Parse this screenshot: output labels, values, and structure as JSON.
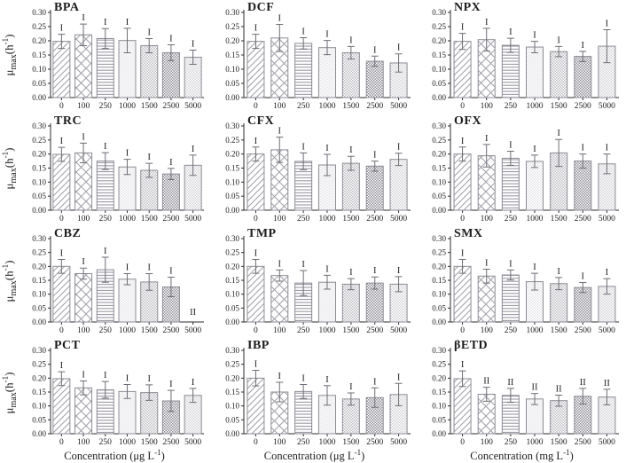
{
  "figure": {
    "y_ticks": [
      "0.00",
      "0.05",
      "0.10",
      "0.15",
      "0.20",
      "0.25",
      "0.30"
    ],
    "ylim": [
      0,
      0.3
    ],
    "categories": [
      "0",
      "100",
      "250",
      "1000",
      "1500",
      "2500",
      "5000"
    ],
    "ylabel": {
      "mu": "μ",
      "sub": "max",
      "mid": "(h",
      "sup": "-1",
      "post": ")"
    },
    "xlabels": {
      "col1": {
        "pre": "Concentration (μg L",
        "sup": "-1",
        "post": ")"
      },
      "col2": {
        "pre": "Concentration (μg L",
        "sup": "-1",
        "post": ")"
      },
      "col3": {
        "pre": "Concentration (mg L",
        "sup": "-1",
        "post": ")"
      }
    },
    "pattern_order": [
      "diagonal",
      "crosshatch",
      "horizontal",
      "checker-faint",
      "checker-medium",
      "checker-dark",
      "checker-light"
    ],
    "colors": {
      "axis": "#2b2b2b",
      "bar_stroke": "#8c8c94",
      "hatch_stroke": "#a0a0a8",
      "error_bar": "#6e6e76",
      "text": "#1d1d1d",
      "background": "#ffffff"
    }
  },
  "chart_data": [
    {
      "type": "bar",
      "id": "bpa",
      "title": "BPA",
      "row": 1,
      "col": 1,
      "has_ylabel": true,
      "xlabel_key": "",
      "values": [
        0.198,
        0.221,
        0.208,
        0.201,
        0.183,
        0.158,
        0.142
      ],
      "errors": [
        0.025,
        0.038,
        0.035,
        0.043,
        0.025,
        0.028,
        0.025
      ],
      "sig": [
        "I",
        "I",
        "I",
        "I",
        "I",
        "I",
        "I"
      ]
    },
    {
      "type": "bar",
      "id": "dcf",
      "title": "DCF",
      "row": 1,
      "col": 2,
      "has_ylabel": false,
      "xlabel_key": "",
      "values": [
        0.198,
        0.21,
        0.191,
        0.176,
        0.158,
        0.128,
        0.122
      ],
      "errors": [
        0.025,
        0.048,
        0.02,
        0.025,
        0.022,
        0.018,
        0.032
      ],
      "sig": [
        "I",
        "I",
        "I",
        "I",
        "I",
        "I",
        "I"
      ]
    },
    {
      "type": "bar",
      "id": "npx",
      "title": "NPX",
      "row": 1,
      "col": 3,
      "has_ylabel": false,
      "xlabel_key": "",
      "values": [
        0.198,
        0.204,
        0.184,
        0.178,
        0.162,
        0.145,
        0.181
      ],
      "errors": [
        0.028,
        0.04,
        0.025,
        0.02,
        0.018,
        0.018,
        0.058
      ],
      "sig": [
        "I",
        "I",
        "I",
        "I",
        "I",
        "I",
        "I"
      ]
    },
    {
      "type": "bar",
      "id": "trc",
      "title": "TRC",
      "row": 2,
      "col": 1,
      "has_ylabel": true,
      "xlabel_key": "",
      "values": [
        0.199,
        0.204,
        0.175,
        0.154,
        0.142,
        0.129,
        0.16
      ],
      "errors": [
        0.025,
        0.035,
        0.03,
        0.027,
        0.025,
        0.02,
        0.036
      ],
      "sig": [
        "I",
        "I",
        "I",
        "I",
        "I",
        "I",
        "I"
      ]
    },
    {
      "type": "bar",
      "id": "cfx",
      "title": "CFX",
      "row": 2,
      "col": 2,
      "has_ylabel": false,
      "xlabel_key": "",
      "values": [
        0.2,
        0.215,
        0.174,
        0.161,
        0.167,
        0.157,
        0.181
      ],
      "errors": [
        0.025,
        0.045,
        0.03,
        0.038,
        0.025,
        0.018,
        0.022
      ],
      "sig": [
        "I",
        "I",
        "I",
        "I",
        "I",
        "I",
        "I"
      ]
    },
    {
      "type": "bar",
      "id": "ofx",
      "title": "OFX",
      "row": 2,
      "col": 3,
      "has_ylabel": false,
      "xlabel_key": "",
      "values": [
        0.2,
        0.194,
        0.185,
        0.174,
        0.204,
        0.175,
        0.165
      ],
      "errors": [
        0.025,
        0.04,
        0.025,
        0.022,
        0.048,
        0.025,
        0.035
      ],
      "sig": [
        "I",
        "I",
        "I",
        "I",
        "I",
        "I",
        "I"
      ]
    },
    {
      "type": "bar",
      "id": "cbz",
      "title": "CBZ",
      "row": 3,
      "col": 1,
      "has_ylabel": true,
      "xlabel_key": "",
      "values": [
        0.2,
        0.174,
        0.188,
        0.154,
        0.144,
        0.126,
        0
      ],
      "errors": [
        0.025,
        0.02,
        0.045,
        0.02,
        0.03,
        0.035,
        0
      ],
      "sig": [
        "I",
        "I",
        "I",
        "I",
        "I",
        "I",
        "II"
      ]
    },
    {
      "type": "bar",
      "id": "tmp",
      "title": "TMP",
      "row": 3,
      "col": 2,
      "has_ylabel": false,
      "xlabel_key": "",
      "values": [
        0.2,
        0.167,
        0.14,
        0.143,
        0.136,
        0.14,
        0.136
      ],
      "errors": [
        0.025,
        0.02,
        0.045,
        0.025,
        0.02,
        0.022,
        0.027
      ],
      "sig": [
        "I",
        "I",
        "I",
        "I",
        "I",
        "I",
        "I"
      ]
    },
    {
      "type": "bar",
      "id": "smx",
      "title": "SMX",
      "row": 3,
      "col": 3,
      "has_ylabel": false,
      "xlabel_key": "",
      "values": [
        0.2,
        0.165,
        0.169,
        0.145,
        0.138,
        0.124,
        0.128
      ],
      "errors": [
        0.025,
        0.025,
        0.018,
        0.03,
        0.022,
        0.018,
        0.028
      ],
      "sig": [
        "I",
        "I",
        "I",
        "I",
        "I",
        "I",
        "I"
      ]
    },
    {
      "type": "bar",
      "id": "pct",
      "title": "PCT",
      "row": 4,
      "col": 1,
      "has_ylabel": true,
      "xlabel_key": "col1",
      "values": [
        0.198,
        0.165,
        0.158,
        0.152,
        0.148,
        0.118,
        0.138
      ],
      "errors": [
        0.025,
        0.025,
        0.03,
        0.025,
        0.028,
        0.038,
        0.025
      ],
      "sig": [
        "I",
        "I",
        "I",
        "I",
        "I",
        "I",
        "I"
      ]
    },
    {
      "type": "bar",
      "id": "ibp",
      "title": "IBP",
      "row": 4,
      "col": 2,
      "has_ylabel": false,
      "xlabel_key": "col2",
      "values": [
        0.2,
        0.15,
        0.152,
        0.138,
        0.125,
        0.13,
        0.141
      ],
      "errors": [
        0.028,
        0.035,
        0.025,
        0.035,
        0.022,
        0.035,
        0.04
      ],
      "sig": [
        "I",
        "I",
        "I",
        "I",
        "I",
        "I",
        "I"
      ]
    },
    {
      "type": "bar",
      "id": "betd",
      "title": "βETD",
      "row": 4,
      "col": 3,
      "has_ylabel": false,
      "xlabel_key": "col3",
      "values": [
        0.198,
        0.142,
        0.138,
        0.125,
        0.119,
        0.135,
        0.132
      ],
      "errors": [
        0.028,
        0.025,
        0.025,
        0.02,
        0.02,
        0.028,
        0.028
      ],
      "sig": [
        "I",
        "II",
        "II",
        "II",
        "II",
        "II",
        "II"
      ]
    }
  ]
}
